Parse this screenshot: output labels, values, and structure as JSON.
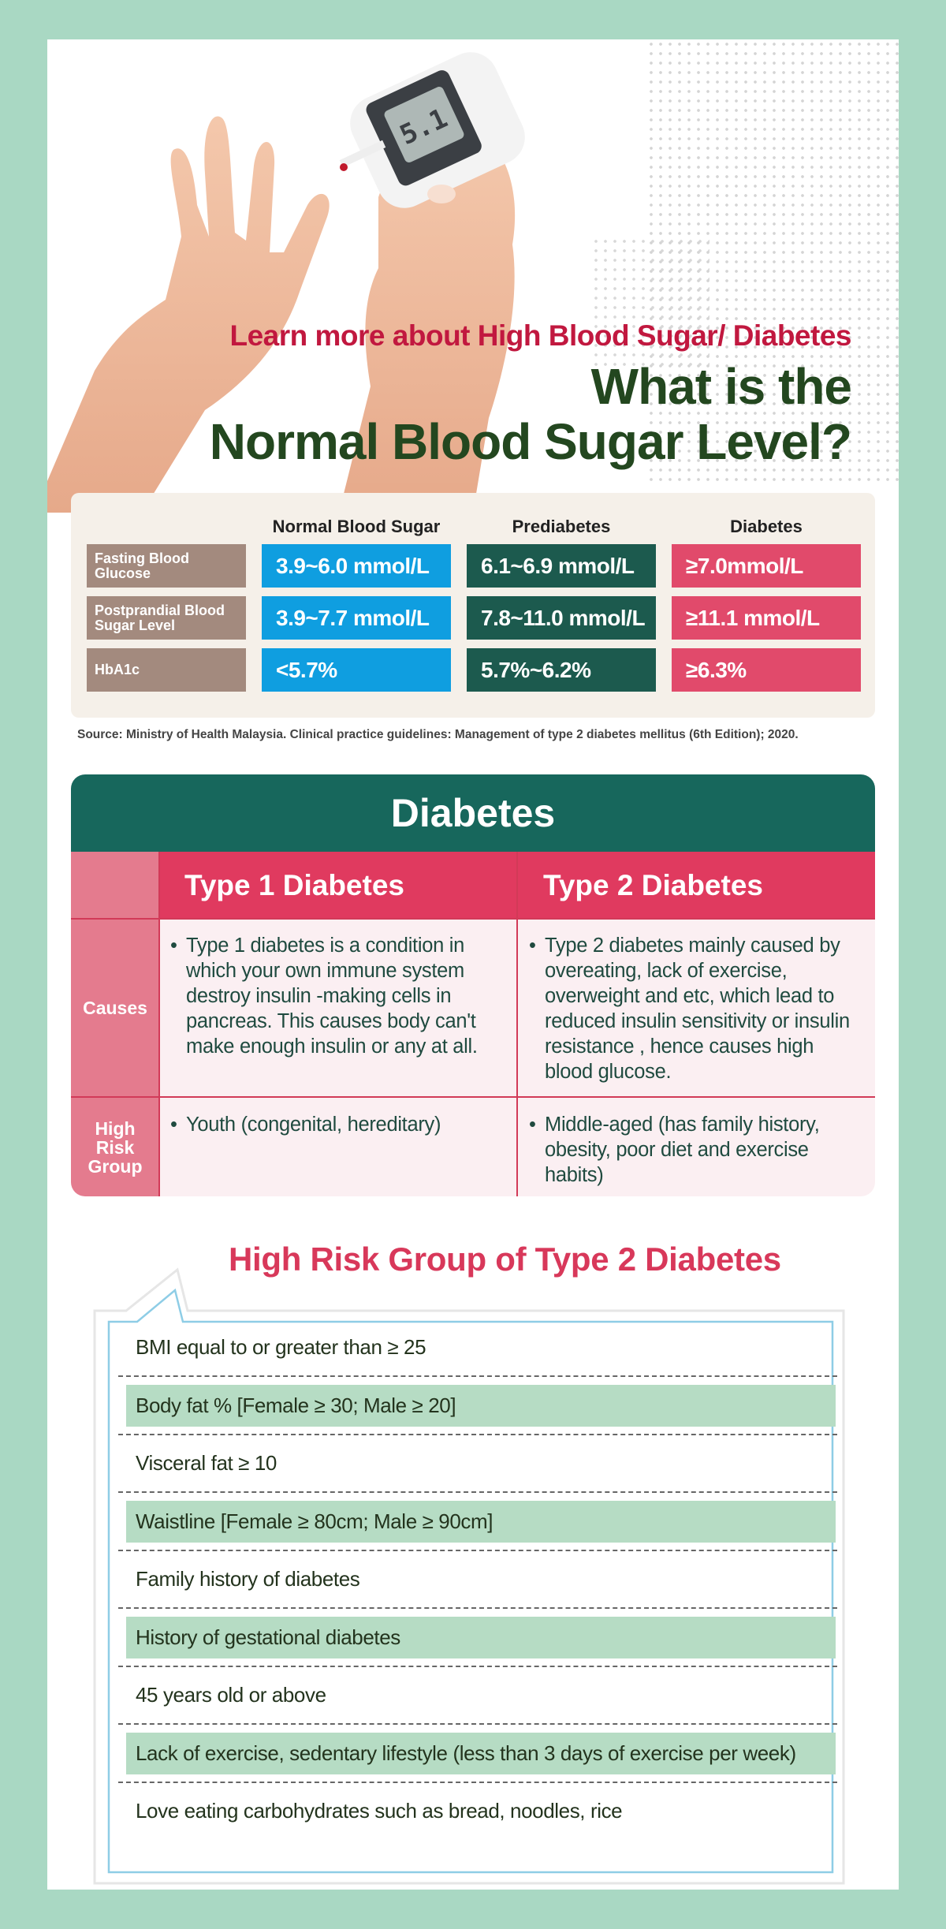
{
  "hero": {
    "kicker": "Learn more about High Blood Sugar/ Diabetes",
    "title_line1": "What is the",
    "title_line2": "Normal Blood Sugar Level?",
    "meter_reading": "5.1"
  },
  "levels": {
    "columns": [
      "Normal Blood Sugar",
      "Prediabetes",
      "Diabetes"
    ],
    "rows": [
      {
        "label": "Fasting Blood Glucose",
        "normal": "3.9~6.0 mmol/L",
        "pre": "6.1~6.9 mmol/L",
        "diabetes": "≥7.0mmol/L"
      },
      {
        "label": "Postprandial Blood Sugar Level",
        "normal": "3.9~7.7 mmol/L",
        "pre": "7.8~11.0 mmol/L",
        "diabetes": "≥11.1 mmol/L"
      },
      {
        "label": "HbA1c",
        "normal": "<5.7%",
        "pre": "5.7%~6.2%",
        "diabetes": "≥6.3%"
      }
    ],
    "colors": {
      "label": "#a38a7e",
      "normal": "#0f9ee0",
      "pre": "#1c5a4e",
      "diabetes": "#e14a6b"
    }
  },
  "source": "Source: Ministry of Health Malaysia. Clinical practice guidelines: Management of type 2 diabetes mellitus (6th Edition); 2020.",
  "diabetes_table": {
    "title": "Diabetes",
    "type1_header": "Type 1 Diabetes",
    "type2_header": "Type 2 Diabetes",
    "causes_label": "Causes",
    "risk_label": "High Risk Group",
    "type1_causes": "Type 1 diabetes is a condition in which your own immune system destroy insulin -making cells in pancreas. This causes body can't make enough insulin or any at all.",
    "type2_causes": "Type 2 diabetes mainly caused by overeating, lack of exercise, overweight and etc, which lead to reduced insulin sensitivity or insulin resistance , hence causes high blood glucose.",
    "type1_risk": "Youth (congenital, hereditary)",
    "type2_risk": "Middle-aged (has family history, obesity, poor diet and exercise habits)",
    "bullet": "•"
  },
  "risk_section": {
    "title": "High Risk Group of Type 2 Diabetes",
    "items": [
      "BMI equal to or greater than ≥ 25",
      "Body fat % [Female ≥ 30; Male ≥ 20]",
      "Visceral fat ≥ 10",
      "Waistline [Female ≥ 80cm; Male ≥ 90cm]",
      "Family history of diabetes",
      "History of gestational diabetes",
      "45 years old or above",
      "Lack of exercise, sedentary lifestyle (less than 3 days of exercise per week)",
      "Love eating carbohydrates such as bread, noodles, rice"
    ]
  }
}
